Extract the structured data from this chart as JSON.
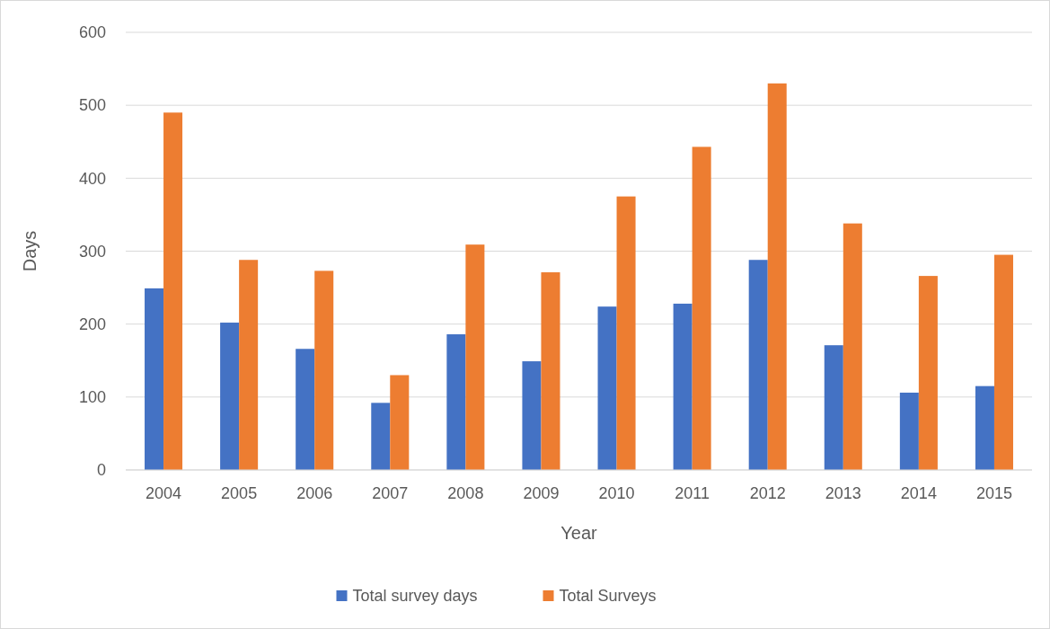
{
  "chart_data": {
    "type": "bar",
    "xlabel": "Year",
    "ylabel": "Days",
    "categories": [
      "2004",
      "2005",
      "2006",
      "2007",
      "2008",
      "2009",
      "2010",
      "2011",
      "2012",
      "2013",
      "2014",
      "2015"
    ],
    "series": [
      {
        "name": "Total survey days",
        "color": "#4472c4",
        "values": [
          249,
          202,
          166,
          92,
          186,
          149,
          224,
          228,
          288,
          171,
          106,
          115
        ]
      },
      {
        "name": "Total Surveys",
        "color": "#ed7d31",
        "values": [
          490,
          288,
          273,
          130,
          309,
          271,
          375,
          443,
          530,
          338,
          266,
          295
        ]
      }
    ],
    "ylim": [
      0,
      600
    ],
    "yticks": [
      0,
      100,
      200,
      300,
      400,
      500,
      600
    ],
    "grid": "y",
    "legend": "bottom"
  }
}
